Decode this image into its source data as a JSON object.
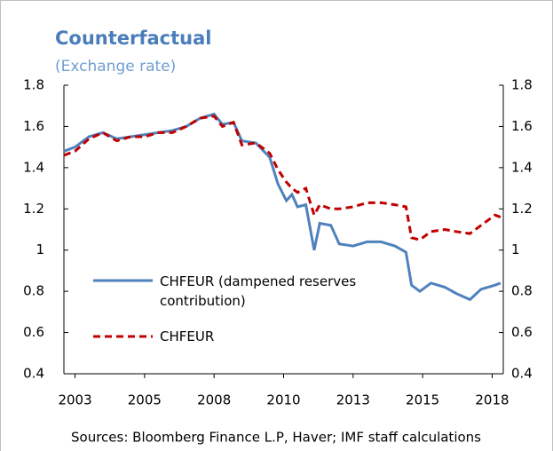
{
  "chart_data": {
    "type": "line",
    "title": "Counterfactual",
    "subtitle": "(Exchange rate)",
    "source": "Sources: Bloomberg Finance L.P, Haver; IMF staff calculations",
    "x": [
      2002.6,
      2003,
      2003.5,
      2004,
      2004.5,
      2005,
      2005.5,
      2006,
      2006.5,
      2007,
      2007.5,
      2008,
      2008.3,
      2008.7,
      2009,
      2009.5,
      2010,
      2010.3,
      2010.6,
      2010.8,
      2011,
      2011.3,
      2011.6,
      2011.8,
      2012.2,
      2012.5,
      2013,
      2013.5,
      2014,
      2014.5,
      2014.9,
      2015.1,
      2015.4,
      2015.8,
      2016.3,
      2016.7,
      2017.2,
      2017.6,
      2018.1,
      2018.3
    ],
    "series": [
      {
        "name": "CHFEUR (dampened reserves contribution)",
        "color": "#4f81bd",
        "dashed": false,
        "values": [
          1.48,
          1.5,
          1.55,
          1.57,
          1.54,
          1.55,
          1.56,
          1.57,
          1.58,
          1.6,
          1.64,
          1.66,
          1.61,
          1.62,
          1.53,
          1.52,
          1.45,
          1.32,
          1.24,
          1.27,
          1.21,
          1.22,
          1.0,
          1.13,
          1.12,
          1.03,
          1.02,
          1.04,
          1.04,
          1.02,
          0.99,
          0.83,
          0.8,
          0.84,
          0.82,
          0.79,
          0.76,
          0.81,
          0.83,
          0.84
        ]
      },
      {
        "name": "CHFEUR",
        "color": "#c00000",
        "dashed": true,
        "values": [
          1.46,
          1.48,
          1.54,
          1.57,
          1.53,
          1.55,
          1.55,
          1.57,
          1.57,
          1.6,
          1.64,
          1.65,
          1.6,
          1.62,
          1.51,
          1.52,
          1.47,
          1.39,
          1.33,
          1.3,
          1.28,
          1.3,
          1.17,
          1.22,
          1.2,
          1.2,
          1.21,
          1.23,
          1.23,
          1.22,
          1.21,
          1.06,
          1.05,
          1.09,
          1.1,
          1.09,
          1.08,
          1.12,
          1.17,
          1.16
        ]
      }
    ],
    "xlim": [
      2002.6,
      2018.4
    ],
    "xticks": [
      {
        "value": 2003,
        "label": "2003"
      },
      {
        "value": 2005.5,
        "label": "2005"
      },
      {
        "value": 2008,
        "label": "2008"
      },
      {
        "value": 2010.5,
        "label": "2010"
      },
      {
        "value": 2013,
        "label": "2013"
      },
      {
        "value": 2015.5,
        "label": "2015"
      },
      {
        "value": 2018,
        "label": "2018"
      }
    ],
    "ylim": [
      0.4,
      1.8
    ],
    "yticks": [
      0.4,
      0.6,
      0.8,
      1,
      1.2,
      1.4,
      1.6,
      1.8
    ],
    "y2lim": [
      0.4,
      1.8
    ],
    "y2ticks": [
      0.4,
      0.6,
      0.8,
      1,
      1.2,
      1.4,
      1.6,
      1.8
    ]
  }
}
